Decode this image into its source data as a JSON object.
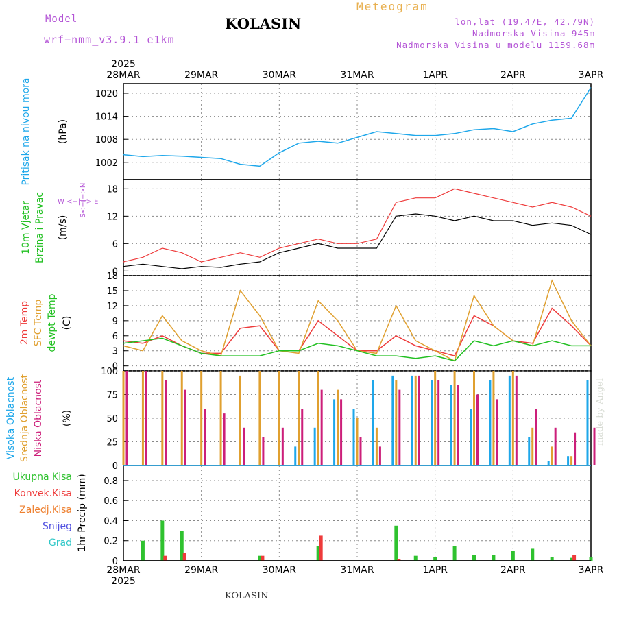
{
  "header": {
    "model_label": "Model",
    "model_name": "wrf−nmm_v3.9.1  e1km",
    "station": "KOLASIN",
    "meteogram": "Meteogram",
    "coords": "lon,lat (19.47E, 42.79N)",
    "elevation": "Nadmorska Visina 945m",
    "model_elevation": "Nadmorska Visina u modelu 1159.68m",
    "year": "2025",
    "footer_station": "KOLASIN",
    "credit": "made by Angel"
  },
  "colors": {
    "pressure": "#1ea7ea",
    "temp2m": "#ee3b3b",
    "sfc": "#e0a030",
    "dewpt": "#22c022",
    "high_cloud": "#1ea7ea",
    "mid_cloud": "#e0a030",
    "low_cloud": "#cc1f7a",
    "total_precip": "#2fc22f",
    "conv_precip": "#ee3b3b",
    "frz_precip": "#ee8030",
    "snow": "#5050e0",
    "hail": "#30c8c8",
    "wind_label": "#22c022",
    "wind_dir": "#b455d6"
  },
  "chart_data": [
    {
      "type": "line",
      "panel": "pressure",
      "ylabel": "Pritisak na nivou mora",
      "unit": "(hPa)",
      "x": [
        "2025-03-28T00",
        "2025-03-28T06",
        "2025-03-28T12",
        "2025-03-28T18",
        "2025-03-29T00",
        "2025-03-29T06",
        "2025-03-29T12",
        "2025-03-29T18",
        "2025-03-30T00",
        "2025-03-30T06",
        "2025-03-30T12",
        "2025-03-30T18",
        "2025-03-31T00",
        "2025-03-31T06",
        "2025-03-31T12",
        "2025-03-31T18",
        "2025-04-01T00",
        "2025-04-01T06",
        "2025-04-01T12",
        "2025-04-01T18",
        "2025-04-02T00",
        "2025-04-02T06",
        "2025-04-02T12",
        "2025-04-02T18",
        "2025-04-03T00"
      ],
      "values": [
        1004,
        1003.5,
        1003.8,
        1003.6,
        1003.3,
        1003,
        1001.5,
        1001,
        1004.5,
        1007,
        1007.5,
        1007,
        1008.5,
        1010,
        1009.5,
        1009,
        1009,
        1009.5,
        1010.5,
        1010.8,
        1010,
        1012,
        1013,
        1013.5,
        1021.5
      ],
      "ylim": [
        997.5,
        1022.5
      ],
      "yticks": [
        1002,
        1008,
        1014,
        1020
      ]
    },
    {
      "type": "line",
      "panel": "wind",
      "ylabel": "10m Vjetar",
      "ylabel2": "Brzina i Pravac",
      "unit": "(m/s)",
      "dir_legend": "W <−|−> E",
      "dir_legend2": "S<−|−>N",
      "series": [
        {
          "name": "speed",
          "values": [
            1,
            1.5,
            1,
            0.5,
            1,
            0.8,
            1.5,
            2,
            4,
            5,
            6,
            5,
            5,
            5,
            12,
            12.5,
            12,
            11,
            12,
            11,
            11,
            10,
            10.5,
            10,
            8
          ]
        },
        {
          "name": "gust",
          "values": [
            2,
            3,
            5,
            4,
            2,
            3,
            4,
            3,
            5,
            6,
            7,
            6,
            6,
            7,
            15,
            16,
            16,
            18,
            17,
            16,
            15,
            14,
            15,
            14,
            12
          ]
        }
      ],
      "ylim": [
        -1,
        20
      ],
      "yticks": [
        0,
        6,
        12,
        18
      ]
    },
    {
      "type": "line",
      "panel": "temperature",
      "series": [
        {
          "name": "2m Temp",
          "values": [
            5,
            4.5,
            6,
            4,
            2.5,
            2.5,
            7.5,
            8,
            3,
            3,
            9,
            6,
            3,
            3,
            6,
            4,
            3,
            2,
            10,
            8,
            5,
            4.5,
            11.5,
            8,
            4
          ]
        },
        {
          "name": "SFC Temp",
          "values": [
            4,
            3,
            10,
            5,
            3,
            2,
            15,
            10,
            3,
            2.5,
            13,
            9,
            3,
            2.5,
            12,
            5,
            3,
            1,
            14,
            8,
            5,
            4,
            17,
            9,
            4
          ]
        },
        {
          "name": "dewpt Temp",
          "values": [
            4.5,
            5,
            5.5,
            4,
            2.5,
            2,
            2,
            2,
            3,
            3,
            4.5,
            4,
            3,
            2,
            2,
            1.5,
            2,
            1,
            5,
            4,
            5,
            4,
            5,
            4,
            4
          ]
        }
      ],
      "unit": "(C)",
      "ylim": [
        -1,
        18
      ],
      "yticks": [
        0,
        3,
        6,
        9,
        12,
        15,
        18
      ]
    },
    {
      "type": "bar",
      "panel": "cloud",
      "series": [
        {
          "name": "Visoka Oblacnost",
          "values": [
            0,
            0,
            0,
            0,
            0,
            0,
            0,
            0,
            0,
            20,
            40,
            70,
            60,
            90,
            95,
            95,
            90,
            85,
            60,
            90,
            95,
            30,
            5,
            10,
            90
          ]
        },
        {
          "name": "Srednja Oblacnost",
          "values": [
            100,
            100,
            100,
            100,
            100,
            100,
            95,
            100,
            100,
            100,
            100,
            80,
            50,
            40,
            90,
            95,
            100,
            100,
            100,
            100,
            100,
            40,
            20,
            10,
            0
          ]
        },
        {
          "name": "Niska Oblacnost",
          "values": [
            100,
            100,
            90,
            80,
            60,
            55,
            40,
            30,
            40,
            60,
            80,
            70,
            30,
            20,
            80,
            95,
            90,
            85,
            75,
            70,
            95,
            60,
            40,
            35,
            40
          ]
        }
      ],
      "unit": "(%)",
      "ylim": [
        0,
        100
      ],
      "yticks": [
        0,
        25,
        50,
        75,
        100
      ]
    },
    {
      "type": "bar",
      "panel": "precip",
      "series": [
        {
          "name": "Ukupna Kisa",
          "values": [
            0,
            0.2,
            0.4,
            0.3,
            0,
            0,
            0,
            0.05,
            0,
            0,
            0.15,
            0,
            0,
            0,
            0.35,
            0.05,
            0.04,
            0.15,
            0.06,
            0.06,
            0.1,
            0.12,
            0.04,
            0.03,
            0.04
          ]
        },
        {
          "name": "Konvek.Kisa",
          "values": [
            0,
            0,
            0.05,
            0.08,
            0,
            0,
            0,
            0.05,
            0,
            0,
            0.25,
            0,
            0,
            0,
            0.02,
            0,
            0,
            0,
            0,
            0,
            0,
            0,
            0,
            0.06,
            0
          ]
        },
        {
          "name": "Zaledj.Kisa",
          "values": []
        },
        {
          "name": "Snijeg",
          "values": []
        },
        {
          "name": "Grad",
          "values": []
        }
      ],
      "ylabel": "1hr Precip",
      "unit": "(mm)",
      "ylim": [
        0,
        0.95
      ],
      "yticks": [
        0,
        0.2,
        0.4,
        0.6,
        0.8
      ]
    }
  ],
  "x_axis": {
    "ticks": [
      "28MAR",
      "29MAR",
      "30MAR",
      "31MAR",
      "1APR",
      "2APR",
      "3APR"
    ]
  }
}
